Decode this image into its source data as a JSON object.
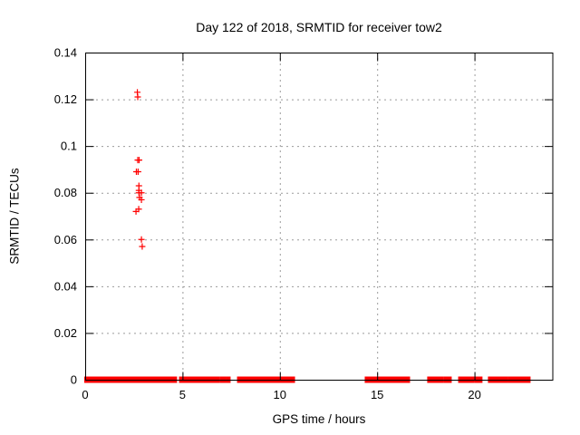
{
  "page": {
    "background": "#ffffff"
  },
  "chart_data": {
    "type": "scatter",
    "title": "Day 122 of 2018, SRMTID for receiver tow2",
    "xlabel": "GPS time / hours",
    "ylabel": "SRMTID / TECUs",
    "xlim": [
      0,
      24
    ],
    "ylim": [
      0,
      0.14
    ],
    "xticks": [
      {
        "v": 0,
        "label": "0"
      },
      {
        "v": 5,
        "label": "5"
      },
      {
        "v": 10,
        "label": "10"
      },
      {
        "v": 15,
        "label": "15"
      },
      {
        "v": 20,
        "label": "20"
      }
    ],
    "yticks": [
      {
        "v": 0.0,
        "label": "0"
      },
      {
        "v": 0.02,
        "label": "0.02"
      },
      {
        "v": 0.04,
        "label": "0.04"
      },
      {
        "v": 0.06,
        "label": "0.06"
      },
      {
        "v": 0.08,
        "label": "0.08"
      },
      {
        "v": 0.1,
        "label": "0.1"
      },
      {
        "v": 0.12,
        "label": "0.12"
      },
      {
        "v": 0.14,
        "label": "0.14"
      }
    ],
    "grid": true,
    "legend": "none",
    "marker": "plus",
    "colors": {
      "marker": "#ff0000",
      "grid": "#9b9b9b",
      "axis": "#000000",
      "text": "#000000"
    },
    "series": [
      {
        "name": "srmtid-cluster",
        "points": [
          [
            2.68,
            0.123
          ],
          [
            2.7,
            0.121
          ],
          [
            2.7,
            0.094
          ],
          [
            2.77,
            0.094
          ],
          [
            2.63,
            0.089
          ],
          [
            2.72,
            0.089
          ],
          [
            2.76,
            0.083
          ],
          [
            2.76,
            0.081
          ],
          [
            2.76,
            0.08
          ],
          [
            2.89,
            0.08
          ],
          [
            2.79,
            0.078
          ],
          [
            2.89,
            0.077
          ],
          [
            2.75,
            0.073
          ],
          [
            2.61,
            0.072
          ],
          [
            2.89,
            0.06
          ],
          [
            2.93,
            0.057
          ]
        ]
      },
      {
        "name": "srmtid-baseline-zero",
        "y": 0,
        "segments_hours": [
          [
            0.02,
            4.65
          ],
          [
            4.89,
            5.03
          ],
          [
            5.12,
            5.21
          ],
          [
            5.26,
            5.45
          ],
          [
            5.54,
            5.63
          ],
          [
            5.73,
            6.33
          ],
          [
            6.42,
            6.84
          ],
          [
            6.98,
            7.17
          ],
          [
            7.31,
            7.4
          ],
          [
            7.87,
            10.71
          ],
          [
            14.43,
            15.41
          ],
          [
            15.5,
            16.29
          ],
          [
            16.39,
            16.62
          ],
          [
            17.64,
            17.83
          ],
          [
            17.92,
            18.34
          ],
          [
            18.48,
            18.76
          ],
          [
            19.23,
            19.74
          ],
          [
            19.83,
            19.93
          ],
          [
            20.07,
            20.16
          ],
          [
            20.25,
            20.34
          ],
          [
            20.76,
            21.46
          ],
          [
            21.55,
            21.65
          ],
          [
            21.79,
            21.88
          ],
          [
            21.97,
            22.07
          ],
          [
            22.16,
            22.39
          ],
          [
            22.49,
            22.58
          ],
          [
            22.72,
            22.81
          ]
        ]
      }
    ]
  }
}
